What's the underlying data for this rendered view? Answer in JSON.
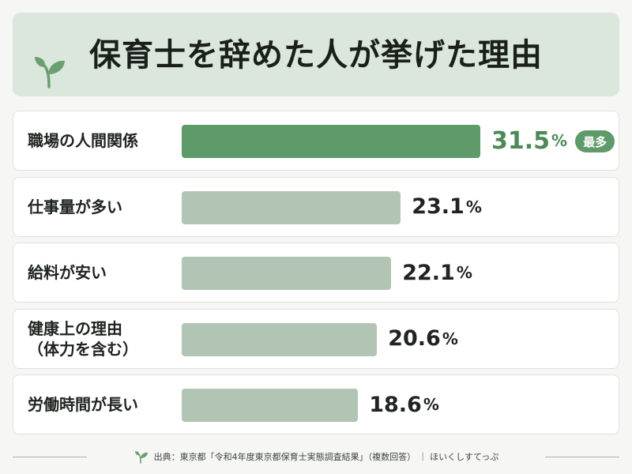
{
  "chart_data": {
    "type": "bar",
    "orientation": "horizontal",
    "title": "保育士を辞めた人が挙げた理由",
    "categories": [
      "職場の人間関係",
      "仕事量が多い",
      "給料が安い",
      "健康上の理由\n（体力を含む）",
      "労働時間が長い"
    ],
    "values": [
      31.5,
      23.1,
      22.1,
      20.6,
      18.6
    ],
    "value_labels": [
      "31.5",
      "23.1",
      "22.1",
      "20.6",
      "18.6"
    ],
    "unit": "%",
    "highlight_index": 0,
    "highlight_badge": "最多",
    "xlim": [
      0,
      40
    ],
    "grid": false,
    "legend": "none",
    "source": "出典：東京都「令和4年度東京都保育士実態調査結果」（複数回答） ｜ ほいくしすてっぷ"
  },
  "colors": {
    "banner": "#dbe7dc",
    "bar_highlight": "#5f9a6a",
    "bar_default": "#b2c4b3",
    "value_highlight": "#4b8a58",
    "text": "#1e241f"
  },
  "icons": {
    "title": "sprout-icon",
    "footer": "sprout-icon"
  }
}
